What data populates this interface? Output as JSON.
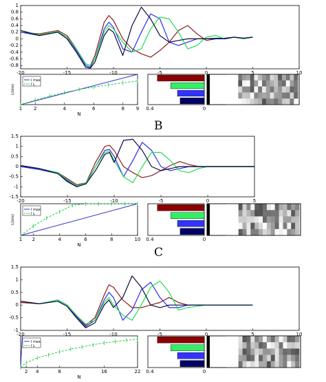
{
  "panel_labels": [
    "B",
    "C"
  ],
  "chart_data": [
    {
      "type": "line",
      "panel": "A-top",
      "xlim": [
        -20,
        10
      ],
      "ylim": [
        -0.9,
        1.0
      ],
      "xticks": [
        -20,
        -15,
        -10,
        -5,
        0,
        5,
        10
      ],
      "yticks": [
        "1",
        "0.8",
        "0.6",
        "0.4",
        "0.2",
        "0",
        "-0.2",
        "-0.4",
        "-0.6",
        "-0.8"
      ],
      "series": [
        {
          "color": "#8b1a1a",
          "x": [
            -20,
            -18,
            -16,
            -15,
            -14,
            -13,
            -12.5,
            -12,
            -11,
            -10.5,
            -10,
            -9,
            -8,
            -7,
            -6,
            -5,
            -4,
            -3,
            -2,
            -1,
            0,
            1,
            2,
            3,
            4,
            5
          ],
          "y": [
            0.2,
            0.15,
            0.25,
            0.1,
            -0.3,
            -0.75,
            -0.8,
            -0.5,
            0.5,
            0.7,
            0.55,
            0.0,
            -0.3,
            -0.45,
            -0.55,
            -0.35,
            -0.1,
            0.25,
            0.4,
            0.15,
            -0.05,
            0.0,
            0.02,
            0.05,
            0.0,
            0.05
          ]
        },
        {
          "color": "#2b2be8",
          "x": [
            -20,
            -18,
            -16,
            -15,
            -14,
            -13,
            -12.5,
            -12,
            -11,
            -10.5,
            -10,
            -9,
            -8,
            -7,
            -6,
            -5,
            -4,
            -3,
            -2,
            -1,
            0,
            1,
            2,
            3,
            4,
            5
          ],
          "y": [
            0.2,
            0.1,
            0.2,
            0.05,
            -0.35,
            -0.8,
            -0.85,
            -0.6,
            0.3,
            0.5,
            0.35,
            -0.3,
            -0.4,
            0.2,
            0.75,
            0.6,
            -0.1,
            -0.2,
            -0.1,
            0.0,
            0.0,
            0.02,
            0.02,
            0.05,
            0.02,
            0.05
          ]
        },
        {
          "color": "#22dd55",
          "x": [
            -20,
            -18,
            -16,
            -15,
            -14,
            -13,
            -12.5,
            -12,
            -11,
            -10.5,
            -10,
            -9,
            -8,
            -7,
            -6,
            -5,
            -4,
            -3,
            -2,
            -1,
            0,
            1,
            2,
            3,
            4,
            5
          ],
          "y": [
            0.25,
            0.12,
            0.22,
            0.05,
            -0.3,
            -0.75,
            -0.8,
            -0.6,
            0.2,
            0.4,
            0.3,
            -0.1,
            -0.4,
            -0.3,
            0.3,
            0.65,
            0.6,
            0.2,
            -0.3,
            -0.2,
            0.05,
            0.1,
            0.0,
            0.05,
            0.0,
            0.05
          ]
        },
        {
          "color": "#0a0a3a",
          "x": [
            -20,
            -18,
            -16,
            -15,
            -14,
            -13,
            -12.5,
            -12,
            -11,
            -10.5,
            -10,
            -9,
            -8,
            -7,
            -6,
            -5,
            -4,
            -3,
            -2,
            -1,
            0,
            1,
            2,
            3,
            4,
            5
          ],
          "y": [
            0.25,
            0.1,
            0.2,
            0.0,
            -0.4,
            -0.85,
            -0.88,
            -0.7,
            0.1,
            0.3,
            0.2,
            -0.5,
            0.4,
            0.95,
            0.6,
            0.1,
            -0.1,
            -0.05,
            0.0,
            0.0,
            0.0,
            0.0,
            0.0,
            0.05,
            0.02,
            0.05
          ]
        }
      ]
    },
    {
      "type": "line",
      "panel": "A-bottom",
      "xlim": [
        1,
        9
      ],
      "xticks": [
        "1",
        "2",
        "4",
        "6",
        "8",
        "9"
      ],
      "xlabel": "N",
      "ylabel": "L(bits)",
      "legend": [
        "I max",
        "I L"
      ],
      "series": [
        {
          "name": "I max",
          "color": "#3333cc",
          "x": [
            1,
            9
          ],
          "y": [
            0,
            1
          ]
        },
        {
          "name": "I L",
          "color": "#22cc44",
          "x": [
            1,
            2,
            3,
            4,
            5,
            6,
            7,
            8,
            9
          ],
          "y": [
            0,
            0.15,
            0.28,
            0.4,
            0.5,
            0.58,
            0.65,
            0.72,
            0.78
          ]
        }
      ]
    },
    {
      "type": "line",
      "panel": "B-top",
      "xlim": [
        -20,
        5
      ],
      "ylim": [
        -1.5,
        1.5
      ],
      "xticks": [
        -20,
        -15,
        -10,
        -5,
        0,
        5
      ],
      "yticks": [
        "1.5",
        "1",
        "0.5",
        "0",
        "-0.5",
        "-1",
        "-1.5"
      ],
      "series": [
        {
          "color": "#8b1a1a",
          "x": [
            -20,
            -18,
            -16,
            -15,
            -14,
            -13,
            -12,
            -11,
            -10.5,
            -10,
            -9,
            -8,
            -7,
            -6,
            -5,
            -4,
            -3,
            -2,
            -1,
            0,
            2,
            5
          ],
          "y": [
            0.0,
            -0.1,
            -0.3,
            -0.6,
            -0.9,
            -0.8,
            0.2,
            1.0,
            1.05,
            0.8,
            0.0,
            -0.3,
            -0.55,
            -0.45,
            -0.2,
            0.05,
            0.25,
            0.1,
            0.0,
            0.0,
            0.0,
            0.0
          ]
        },
        {
          "color": "#2b2be8",
          "x": [
            -20,
            -18,
            -16,
            -15,
            -14,
            -13,
            -12,
            -11,
            -10.5,
            -10,
            -9,
            -8,
            -7,
            -6,
            -5,
            -4,
            -3,
            -2,
            -1,
            0,
            2,
            5
          ],
          "y": [
            0.0,
            -0.15,
            -0.35,
            -0.7,
            -1.0,
            -0.85,
            0.0,
            0.8,
            0.85,
            0.5,
            -0.5,
            0.3,
            1.2,
            0.8,
            0.0,
            -0.2,
            -0.1,
            0.0,
            0.0,
            0.0,
            0.0,
            0.0
          ]
        },
        {
          "color": "#22dd55",
          "x": [
            -20,
            -18,
            -16,
            -15,
            -14,
            -13,
            -12,
            -11,
            -10.5,
            -10,
            -9,
            -8,
            -7,
            -6,
            -5,
            -4,
            -3,
            -2,
            -1,
            0,
            2,
            5
          ],
          "y": [
            0.05,
            -0.1,
            -0.3,
            -0.65,
            -0.95,
            -0.8,
            0.0,
            0.7,
            0.75,
            0.3,
            -0.5,
            -0.8,
            0.0,
            0.7,
            0.7,
            0.3,
            -0.2,
            -0.3,
            -0.1,
            0.0,
            0.0,
            0.0
          ]
        },
        {
          "color": "#0a0a3a",
          "x": [
            -20,
            -18,
            -16,
            -15,
            -14,
            -13,
            -12,
            -11,
            -10.5,
            -10,
            -9,
            -8,
            -7,
            -6,
            -5,
            -4,
            -3,
            -2,
            -1,
            0,
            2,
            5
          ],
          "y": [
            0.05,
            -0.1,
            -0.35,
            -0.75,
            -1.0,
            -0.85,
            -0.2,
            0.6,
            0.7,
            0.2,
            1.3,
            1.35,
            0.8,
            0.0,
            -0.2,
            -0.1,
            0.0,
            0.0,
            0.0,
            0.0,
            0.0,
            0.0
          ]
        }
      ]
    },
    {
      "type": "line",
      "panel": "B-bottom",
      "xlim": [
        1,
        10
      ],
      "xticks": [
        "1",
        "2",
        "4",
        "6",
        "8",
        "10"
      ],
      "xlabel": "N",
      "ylabel": "L(bits)",
      "yticks": [
        "2.5",
        "2",
        "1.5",
        "1",
        "0.5",
        "0"
      ],
      "legend": [
        "I max",
        "I L"
      ],
      "series": [
        {
          "name": "I max",
          "color": "#3333cc",
          "x": [
            1,
            10
          ],
          "y": [
            0,
            2.6
          ]
        },
        {
          "name": "I L",
          "color": "#22cc44",
          "x": [
            1,
            2,
            3,
            4,
            5,
            6,
            7,
            8,
            9,
            10
          ],
          "y": [
            0,
            0.3,
            0.55,
            0.75,
            0.95,
            1.1,
            1.25,
            1.4,
            1.5,
            1.6
          ]
        }
      ]
    },
    {
      "type": "line",
      "panel": "C-top",
      "xlim": [
        -20,
        10
      ],
      "ylim": [
        -1.0,
        1.5
      ],
      "xticks": [
        -20,
        -15,
        -10,
        -5,
        0,
        5,
        10
      ],
      "yticks": [
        "1.5",
        "1",
        "0.5",
        "0",
        "-0.5",
        "-1"
      ],
      "series": [
        {
          "color": "#8b1a1a",
          "x": [
            -20,
            -18,
            -16,
            -15,
            -14,
            -13,
            -12,
            -11,
            -10.5,
            -10,
            -9,
            -8,
            -7,
            -6,
            -5,
            -4,
            -3,
            -2,
            0,
            5
          ],
          "y": [
            0.1,
            0.05,
            0.2,
            0.0,
            -0.4,
            -0.8,
            -0.5,
            0.4,
            0.8,
            0.7,
            0.2,
            -0.1,
            -0.1,
            0.0,
            0.1,
            0.3,
            0.1,
            0.0,
            0.0,
            0.0
          ]
        },
        {
          "color": "#2b2be8",
          "x": [
            -20,
            -18,
            -16,
            -15,
            -14,
            -13,
            -12,
            -11,
            -10.5,
            -10,
            -9,
            -8,
            -7,
            -6,
            -5,
            -4,
            -3,
            -2,
            0,
            5
          ],
          "y": [
            0.15,
            0.05,
            0.2,
            0.0,
            -0.45,
            -0.85,
            -0.6,
            0.2,
            0.5,
            0.3,
            -0.6,
            -0.2,
            0.6,
            0.9,
            0.3,
            -0.1,
            -0.1,
            0.0,
            0.0,
            0.0
          ]
        },
        {
          "color": "#22dd55",
          "x": [
            -20,
            -18,
            -16,
            -15,
            -14,
            -13,
            -12,
            -11,
            -10.5,
            -10,
            -9,
            -8,
            -7,
            -6,
            -5,
            -4,
            -3,
            -2,
            0,
            5
          ],
          "y": [
            0.15,
            0.05,
            0.2,
            0.0,
            -0.4,
            -0.75,
            -0.6,
            0.1,
            0.3,
            0.0,
            -0.4,
            -0.6,
            0.0,
            0.7,
            0.95,
            0.5,
            -0.2,
            -0.1,
            0.0,
            0.0
          ]
        },
        {
          "color": "#0a0a3a",
          "x": [
            -20,
            -18,
            -16,
            -15,
            -14,
            -13,
            -12,
            -11,
            -10.5,
            -10,
            -9,
            -8,
            -7,
            -6,
            -5,
            -4,
            -3,
            -2,
            0,
            5
          ],
          "y": [
            0.15,
            0.05,
            0.15,
            -0.05,
            -0.5,
            -0.9,
            -0.7,
            0.0,
            0.2,
            -0.1,
            0.3,
            1.15,
            0.7,
            0.0,
            -0.1,
            0.0,
            0.0,
            0.0,
            0.0,
            0.0
          ]
        }
      ]
    },
    {
      "type": "line",
      "panel": "C-bottom",
      "xlim": [
        1,
        22
      ],
      "xticks": [
        "2",
        "4",
        "8",
        "16",
        "22"
      ],
      "xlabel": "N",
      "legend": [
        "I max",
        "I L"
      ],
      "series": [
        {
          "name": "I max",
          "color": "#3333cc",
          "x": [
            1,
            1.3
          ],
          "y": [
            0,
            1
          ]
        },
        {
          "name": "I L",
          "color": "#22cc44",
          "x": [
            1,
            2,
            4,
            6,
            8,
            10,
            12,
            14,
            16,
            18,
            20,
            22
          ],
          "y": [
            0,
            0.15,
            0.3,
            0.4,
            0.5,
            0.58,
            0.65,
            0.72,
            0.78,
            0.82,
            0.86,
            0.9
          ]
        }
      ]
    }
  ],
  "bar_panels": [
    {
      "xticks": [
        "0.4",
        "0"
      ],
      "values": [
        0.35,
        0.25,
        0.2,
        0.18
      ],
      "colors": [
        "#8b0000",
        "#33ee66",
        "#3333ff",
        "#000066"
      ]
    },
    {
      "xticks": [
        "0.4",
        "0"
      ],
      "values": [
        0.35,
        0.25,
        0.2,
        0.18
      ],
      "colors": [
        "#8b0000",
        "#33ee66",
        "#3333ff",
        "#000066"
      ]
    },
    {
      "xticks": [
        "0.4",
        "0"
      ],
      "values": [
        0.35,
        0.25,
        0.2,
        0.18
      ],
      "colors": [
        "#8b0000",
        "#33ee66",
        "#3333ff",
        "#000066"
      ]
    }
  ]
}
